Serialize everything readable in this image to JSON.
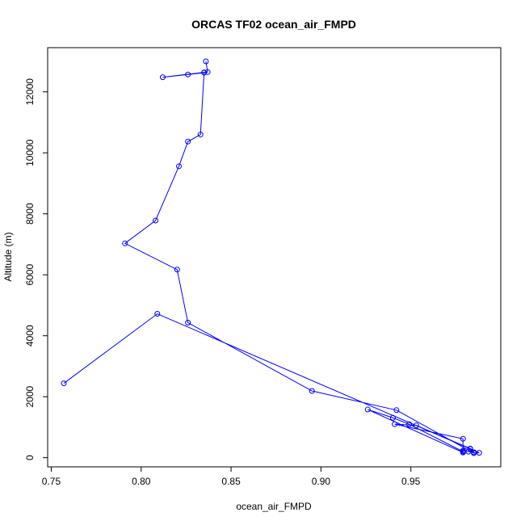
{
  "chart_data": {
    "type": "line",
    "title": "ORCAS TF02 ocean_air_FMPD",
    "xlabel": "ocean_air_FMPD",
    "ylabel": "Altitude (m)",
    "xlim": [
      0.748,
      1.0
    ],
    "ylim": [
      -300,
      13450
    ],
    "x_ticks": [
      0.75,
      0.8,
      0.85,
      0.9,
      0.95
    ],
    "x_tick_labels": [
      "0.75",
      "0.80",
      "0.85",
      "0.90",
      "0.95"
    ],
    "y_ticks": [
      0,
      2000,
      4000,
      6000,
      8000,
      10000,
      12000
    ],
    "y_tick_labels": [
      "0",
      "2000",
      "4000",
      "6000",
      "8000",
      "10000",
      "12000"
    ],
    "grid": false,
    "legend": "none",
    "markers": "open-circle",
    "color": "#0000ff",
    "series": [
      {
        "x": [
          0.836,
          0.837,
          0.835,
          0.826,
          0.812,
          0.835,
          0.833,
          0.826,
          0.821,
          0.808,
          0.791,
          0.82,
          0.826,
          0.895,
          0.942,
          0.985,
          0.988,
          0.983,
          0.953,
          0.941,
          0.979,
          0.979,
          0.949,
          0.94,
          0.926,
          0.979,
          0.979,
          0.982,
          0.985,
          0.983,
          0.809,
          0.757
        ],
        "y": [
          13000,
          12650,
          12630,
          12570,
          12480,
          12640,
          10600,
          10370,
          9560,
          7780,
          7030,
          6170,
          4430,
          2190,
          1560,
          150,
          160,
          300,
          1060,
          1100,
          620,
          200,
          1100,
          1310,
          1580,
          170,
          230,
          200,
          180,
          290,
          4720,
          2440
        ]
      }
    ]
  }
}
